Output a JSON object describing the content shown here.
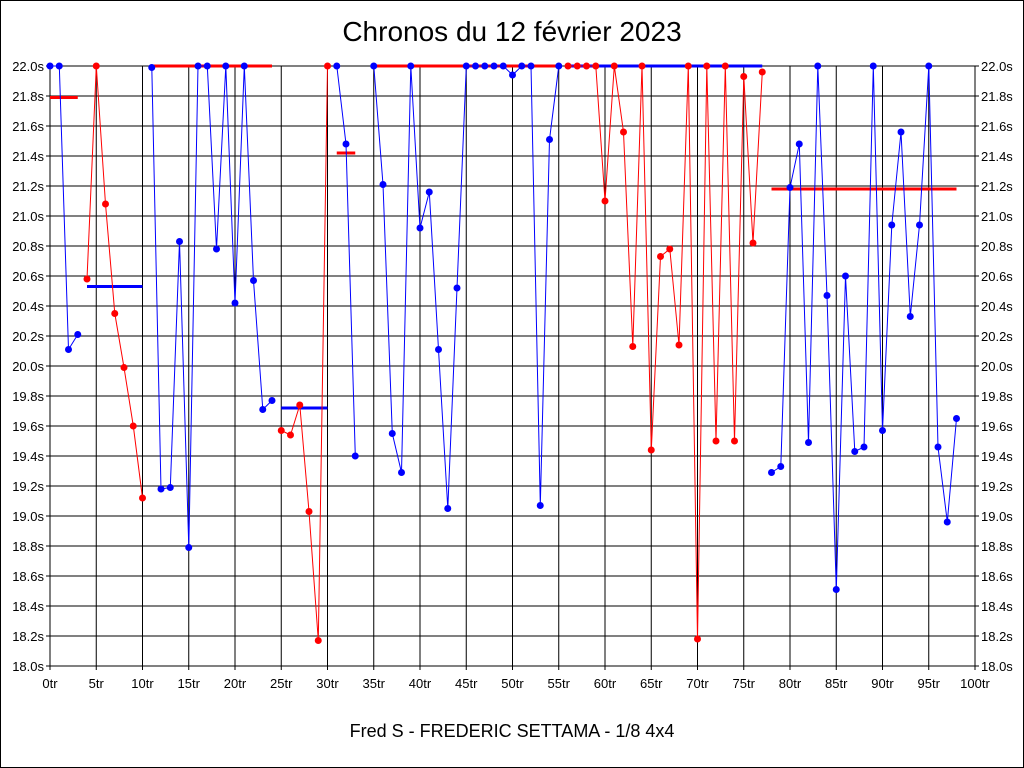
{
  "chart_data": {
    "type": "line",
    "title": "Chronos du 12 février 2023",
    "subtitle": "Fred S - FREDERIC SETTAMA - 1/8 4x4",
    "x_suffix": "tr",
    "y_suffix": "s",
    "xlim": [
      0,
      100
    ],
    "ylim": [
      18.0,
      22.0
    ],
    "x_step": 5,
    "y_step": 0.2,
    "grid": true,
    "colors": {
      "blue": "#0000ff",
      "red": "#ff0000"
    },
    "segments": [
      {
        "color": "blue",
        "points": [
          [
            0,
            22.0
          ],
          [
            1,
            22.0
          ],
          [
            2,
            20.11
          ],
          [
            3,
            20.21
          ]
        ]
      },
      {
        "color": "red",
        "points": [
          [
            4,
            20.58
          ],
          [
            5,
            22.0
          ],
          [
            6,
            21.08
          ],
          [
            7,
            20.35
          ],
          [
            8,
            19.99
          ],
          [
            9,
            19.6
          ],
          [
            10,
            19.12
          ]
        ]
      },
      {
        "color": "blue",
        "points": [
          [
            11,
            21.99
          ],
          [
            12,
            19.18
          ],
          [
            13,
            19.19
          ],
          [
            14,
            20.83
          ],
          [
            15,
            18.79
          ],
          [
            16,
            22.0
          ],
          [
            17,
            22.0
          ],
          [
            18,
            20.78
          ],
          [
            19,
            22.0
          ],
          [
            20,
            20.42
          ],
          [
            21,
            22.0
          ],
          [
            22,
            20.57
          ],
          [
            23,
            19.71
          ],
          [
            24,
            19.77
          ]
        ]
      },
      {
        "color": "red",
        "points": [
          [
            25,
            19.57
          ],
          [
            26,
            19.54
          ],
          [
            27,
            19.74
          ],
          [
            28,
            19.03
          ],
          [
            29,
            18.17
          ],
          [
            30,
            22.0
          ]
        ]
      },
      {
        "color": "blue",
        "points": [
          [
            31,
            22.0
          ],
          [
            32,
            21.48
          ],
          [
            33,
            19.4
          ]
        ]
      },
      {
        "color": "blue",
        "points": [
          [
            35,
            22.0
          ],
          [
            36,
            21.21
          ],
          [
            37,
            19.55
          ],
          [
            38,
            19.29
          ],
          [
            39,
            22.0
          ],
          [
            40,
            20.92
          ],
          [
            41,
            21.16
          ],
          [
            42,
            20.11
          ],
          [
            43,
            19.05
          ],
          [
            44,
            20.52
          ],
          [
            45,
            22.0
          ],
          [
            46,
            22.0
          ],
          [
            47,
            22.0
          ],
          [
            48,
            22.0
          ],
          [
            49,
            22.0
          ],
          [
            50,
            21.94
          ],
          [
            51,
            22.0
          ],
          [
            52,
            22.0
          ],
          [
            53,
            19.07
          ],
          [
            54,
            21.51
          ],
          [
            55,
            22.0
          ]
        ]
      },
      {
        "color": "red",
        "points": [
          [
            56,
            22.0
          ],
          [
            57,
            22.0
          ],
          [
            58,
            22.0
          ],
          [
            59,
            22.0
          ],
          [
            60,
            21.1
          ],
          [
            61,
            22.0
          ],
          [
            62,
            21.56
          ],
          [
            63,
            20.13
          ],
          [
            64,
            22.0
          ],
          [
            65,
            19.44
          ],
          [
            66,
            20.73
          ],
          [
            67,
            20.78
          ],
          [
            68,
            20.14
          ],
          [
            69,
            22.0
          ],
          [
            70,
            18.18
          ],
          [
            71,
            22.0
          ],
          [
            72,
            19.5
          ],
          [
            73,
            22.0
          ],
          [
            74,
            19.5
          ],
          [
            75,
            21.93
          ],
          [
            76,
            20.82
          ],
          [
            77,
            21.96
          ]
        ]
      },
      {
        "color": "blue",
        "points": [
          [
            78,
            19.29
          ],
          [
            79,
            19.33
          ],
          [
            80,
            21.19
          ],
          [
            81,
            21.48
          ],
          [
            82,
            19.49
          ],
          [
            83,
            22.0
          ],
          [
            84,
            20.47
          ],
          [
            85,
            18.51
          ],
          [
            86,
            20.6
          ],
          [
            87,
            19.43
          ],
          [
            88,
            19.46
          ],
          [
            89,
            22.0
          ],
          [
            90,
            19.57
          ],
          [
            91,
            20.94
          ],
          [
            92,
            21.56
          ],
          [
            93,
            20.33
          ],
          [
            94,
            20.94
          ],
          [
            95,
            22.0
          ],
          [
            96,
            19.46
          ],
          [
            97,
            18.96
          ],
          [
            98,
            19.65
          ]
        ]
      }
    ],
    "averages": [
      {
        "color": "red",
        "x": [
          0,
          3
        ],
        "y": 21.79
      },
      {
        "color": "blue",
        "x": [
          4,
          10
        ],
        "y": 20.53
      },
      {
        "color": "red",
        "x": [
          11,
          24
        ],
        "y": 22.0
      },
      {
        "color": "blue",
        "x": [
          25,
          30
        ],
        "y": 19.72
      },
      {
        "color": "red",
        "x": [
          31,
          33
        ],
        "y": 21.42
      },
      {
        "color": "red",
        "x": [
          35,
          55
        ],
        "y": 22.0
      },
      {
        "color": "blue",
        "x": [
          56,
          77
        ],
        "y": 22.0
      },
      {
        "color": "red",
        "x": [
          78,
          98
        ],
        "y": 21.18
      }
    ]
  }
}
